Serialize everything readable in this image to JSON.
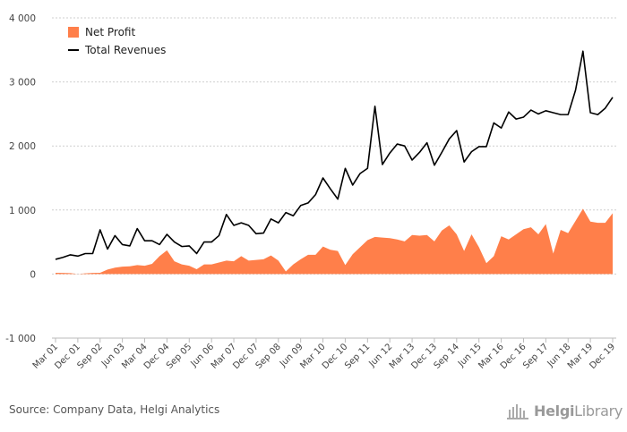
{
  "chart_data": {
    "type": "area",
    "title": "",
    "xlabel": "",
    "ylabel": "",
    "ylim": [
      -1000,
      4000
    ],
    "yticks": [
      "-1 000",
      "0",
      "1 000",
      "2 000",
      "3 000",
      "4 000"
    ],
    "ytick_values": [
      -1000,
      0,
      1000,
      2000,
      3000,
      4000
    ],
    "grid": "horizontal",
    "legend_position": "top-left",
    "x_tick_labels": [
      "Mar 01",
      "Dec 01",
      "Sep 02",
      "Jun 03",
      "Mar 04",
      "Dec 04",
      "Sep 05",
      "Jun 06",
      "Mar 07",
      "Dec 07",
      "Sep 08",
      "Jun 09",
      "Mar 10",
      "Dec 10",
      "Sep 11",
      "Jun 12",
      "Mar 13",
      "Dec 13",
      "Sep 14",
      "Jun 15",
      "Mar 16",
      "Dec 16",
      "Sep 17",
      "Jun 18",
      "Mar 19",
      "Dec 19"
    ],
    "x_start": "Mar 01",
    "x_end": "Dec 19",
    "x_frequency": "quarterly",
    "series": [
      {
        "name": "Net Profit",
        "style": "area",
        "color": "#ff7f4a",
        "values": [
          20,
          18,
          15,
          0,
          10,
          18,
          20,
          70,
          100,
          115,
          120,
          140,
          130,
          160,
          280,
          370,
          200,
          150,
          130,
          75,
          150,
          150,
          180,
          210,
          200,
          280,
          210,
          220,
          230,
          290,
          210,
          40,
          150,
          230,
          300,
          300,
          430,
          380,
          360,
          140,
          310,
          420,
          530,
          580,
          570,
          560,
          540,
          510,
          610,
          600,
          610,
          510,
          680,
          760,
          620,
          360,
          620,
          420,
          170,
          280,
          590,
          540,
          620,
          700,
          730,
          620,
          780,
          320,
          690,
          640,
          830,
          1020,
          820,
          800,
          800,
          950
        ]
      },
      {
        "name": "Total Revenues",
        "style": "line",
        "color": "#000000",
        "values": [
          230,
          260,
          300,
          280,
          320,
          320,
          690,
          390,
          600,
          460,
          440,
          710,
          520,
          520,
          460,
          620,
          500,
          430,
          440,
          320,
          500,
          500,
          600,
          930,
          760,
          800,
          760,
          630,
          640,
          860,
          800,
          960,
          910,
          1070,
          1110,
          1240,
          1500,
          1330,
          1170,
          1650,
          1390,
          1570,
          1650,
          2620,
          1710,
          1890,
          2030,
          2000,
          1780,
          1900,
          2050,
          1700,
          1900,
          2110,
          2240,
          1750,
          1910,
          1990,
          1990,
          2360,
          2280,
          2530,
          2420,
          2450,
          2560,
          2500,
          2550,
          2520,
          2490,
          2490,
          2870,
          3480,
          2520,
          2490,
          2590,
          2760
        ]
      }
    ]
  },
  "source": "Source: Company Data, Helgi Analytics",
  "logo": {
    "bold": "Helgi",
    "thin": "Library"
  }
}
